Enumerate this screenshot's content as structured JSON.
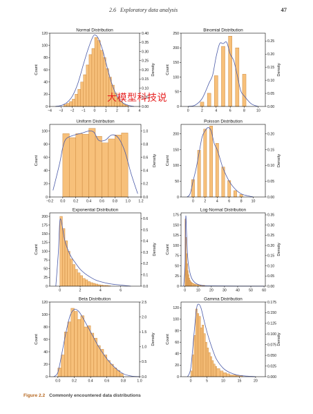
{
  "header": {
    "section": "2.6",
    "title": "Exploratory data analysis",
    "page_number": "47"
  },
  "caption": {
    "label": "Figure 2.2",
    "text": "Commonly encountered data distributions"
  },
  "watermark": {
    "text": "大模型科技说",
    "color": "#e62020"
  },
  "colors": {
    "bar_fill": "#f7c07a",
    "bar_stroke": "#c7843a",
    "density_line": "#4a5aa8"
  },
  "chart_data": [
    {
      "type": "bar",
      "title": "Normal Distribution",
      "ylabel": "Count",
      "y2label": "Density",
      "xlim": [
        -4,
        4
      ],
      "ylim": [
        0,
        120
      ],
      "y2lim": [
        0,
        0.4
      ],
      "xticks": [
        -4,
        -3,
        -2,
        -1,
        0,
        1,
        2,
        3,
        4
      ],
      "xtick_labels": [
        "−4",
        "−3",
        "−2",
        "−1",
        "0",
        "1",
        "2",
        "3",
        "4"
      ],
      "yticks": [
        0,
        20,
        40,
        60,
        80,
        100,
        120
      ],
      "y2ticks": [
        0,
        0.05,
        0.1,
        0.15,
        0.2,
        0.25,
        0.3,
        0.35,
        0.4
      ],
      "y2tick_labels": [
        "0.00",
        "0.05",
        "0.10",
        "0.15",
        "0.20",
        "0.25",
        "0.30",
        "0.35",
        "0.40"
      ],
      "bin_edges": [
        -2.75,
        -2.5,
        -2.25,
        -2.0,
        -1.75,
        -1.5,
        -1.25,
        -1.0,
        -0.75,
        -0.5,
        -0.25,
        0.0,
        0.25,
        0.5,
        0.75,
        1.0,
        1.25,
        1.5,
        1.75,
        2.0,
        2.25,
        2.5,
        2.75,
        3.0
      ],
      "counts": [
        3,
        5,
        8,
        12,
        20,
        28,
        40,
        52,
        68,
        85,
        95,
        113,
        108,
        92,
        80,
        62,
        48,
        35,
        22,
        14,
        8,
        4,
        2
      ],
      "density": [
        [
          -3.5,
          0.0
        ],
        [
          -3.0,
          0.005
        ],
        [
          -2.5,
          0.02
        ],
        [
          -2.0,
          0.055
        ],
        [
          -1.5,
          0.125
        ],
        [
          -1.0,
          0.23
        ],
        [
          -0.6,
          0.31
        ],
        [
          -0.2,
          0.375
        ],
        [
          0.0,
          0.39
        ],
        [
          0.3,
          0.375
        ],
        [
          0.7,
          0.31
        ],
        [
          1.0,
          0.24
        ],
        [
          1.5,
          0.13
        ],
        [
          2.0,
          0.056
        ],
        [
          2.5,
          0.02
        ],
        [
          3.0,
          0.006
        ],
        [
          3.5,
          0.0
        ]
      ]
    },
    {
      "type": "bar",
      "title": "Binomial Distribution",
      "ylabel": "Count",
      "y2label": "Density",
      "xlim": [
        -1,
        11
      ],
      "ylim": [
        0,
        250
      ],
      "y2lim": [
        0,
        0.28
      ],
      "xticks": [
        0,
        2,
        4,
        6,
        8,
        10
      ],
      "xtick_labels": [
        "0",
        "2",
        "4",
        "6",
        "8",
        "10"
      ],
      "yticks": [
        0,
        50,
        100,
        150,
        200,
        250
      ],
      "y2ticks": [
        0,
        0.05,
        0.1,
        0.15,
        0.2,
        0.25
      ],
      "y2tick_labels": [
        "0.00",
        "0.05",
        "0.10",
        "0.15",
        "0.20",
        "0.25"
      ],
      "bin_edges": [
        1.75,
        2.25,
        2.75,
        3.25,
        3.75,
        4.25,
        4.75,
        5.25,
        5.75,
        6.25,
        6.75,
        7.25,
        7.75,
        8.25,
        8.75
      ],
      "counts": [
        15,
        0,
        45,
        0,
        105,
        0,
        205,
        0,
        240,
        0,
        200,
        0,
        110,
        0,
        45
      ],
      "density": [
        [
          0,
          0.0
        ],
        [
          1,
          0.005
        ],
        [
          2,
          0.03
        ],
        [
          3,
          0.09
        ],
        [
          3.5,
          0.12
        ],
        [
          4,
          0.19
        ],
        [
          4.5,
          0.24
        ],
        [
          5,
          0.24
        ],
        [
          5.5,
          0.245
        ],
        [
          6,
          0.2
        ],
        [
          6.5,
          0.175
        ],
        [
          7,
          0.12
        ],
        [
          7.5,
          0.06
        ],
        [
          8,
          0.04
        ],
        [
          9,
          0.01
        ],
        [
          10,
          0.0
        ]
      ]
    },
    {
      "type": "bar",
      "title": "Uniform Distribution",
      "ylabel": "Count",
      "y2label": "Density",
      "xlim": [
        -0.2,
        1.2
      ],
      "ylim": [
        0,
        110
      ],
      "y2lim": [
        0,
        1.1
      ],
      "xticks": [
        -0.2,
        0.0,
        0.2,
        0.4,
        0.6,
        0.8,
        1.0,
        1.2
      ],
      "xtick_labels": [
        "−0.2",
        "0.0",
        "0.2",
        "0.4",
        "0.6",
        "0.8",
        "1.0",
        "1.2"
      ],
      "yticks": [
        0,
        20,
        40,
        60,
        80,
        100
      ],
      "y2ticks": [
        0.0,
        0.2,
        0.4,
        0.6,
        0.8,
        1.0
      ],
      "y2tick_labels": [
        "0.0",
        "0.2",
        "0.4",
        "0.6",
        "0.8",
        "1.0"
      ],
      "bin_edges": [
        0.0,
        0.1,
        0.2,
        0.3,
        0.4,
        0.5,
        0.6,
        0.7,
        0.8,
        0.9,
        1.0
      ],
      "counts": [
        96,
        90,
        96,
        95,
        104,
        92,
        82,
        88,
        94,
        97
      ],
      "density": [
        [
          -0.15,
          0.1
        ],
        [
          -0.05,
          0.5
        ],
        [
          0.0,
          0.75
        ],
        [
          0.05,
          0.88
        ],
        [
          0.15,
          0.93
        ],
        [
          0.3,
          0.97
        ],
        [
          0.4,
          1.0
        ],
        [
          0.48,
          0.98
        ],
        [
          0.55,
          0.86
        ],
        [
          0.65,
          0.86
        ],
        [
          0.75,
          0.94
        ],
        [
          0.85,
          0.9
        ],
        [
          0.95,
          0.7
        ],
        [
          1.05,
          0.35
        ],
        [
          1.15,
          0.05
        ]
      ]
    },
    {
      "type": "bar",
      "title": "Poisson Distribution",
      "ylabel": "Count",
      "y2label": "Density",
      "xlim": [
        -2,
        12
      ],
      "ylim": [
        0,
        230
      ],
      "y2lim": [
        0,
        0.23
      ],
      "xticks": [
        0,
        2,
        4,
        6,
        8,
        10
      ],
      "xtick_labels": [
        "0",
        "2",
        "4",
        "6",
        "8",
        "10"
      ],
      "yticks": [
        0,
        50,
        100,
        150,
        200
      ],
      "y2ticks": [
        0.0,
        0.05,
        0.1,
        0.15,
        0.2
      ],
      "y2tick_labels": [
        "0.00",
        "0.05",
        "0.10",
        "0.15",
        "0.20"
      ],
      "bin_edges": [
        -0.25,
        0.25,
        0.75,
        1.25,
        1.75,
        2.25,
        2.75,
        3.25,
        3.75,
        4.25,
        4.75,
        5.25,
        5.75,
        6.25,
        6.75,
        7.25,
        7.75,
        8.25
      ],
      "counts": [
        55,
        0,
        148,
        0,
        215,
        0,
        225,
        0,
        170,
        0,
        95,
        0,
        52,
        0,
        20,
        0,
        8
      ],
      "density": [
        [
          -1,
          0.0
        ],
        [
          -0.5,
          0.01
        ],
        [
          0,
          0.05
        ],
        [
          0.5,
          0.09
        ],
        [
          1,
          0.14
        ],
        [
          1.5,
          0.19
        ],
        [
          2,
          0.21
        ],
        [
          2.5,
          0.22
        ],
        [
          3,
          0.21
        ],
        [
          3.5,
          0.17
        ],
        [
          4,
          0.15
        ],
        [
          4.5,
          0.12
        ],
        [
          5,
          0.09
        ],
        [
          6,
          0.05
        ],
        [
          7,
          0.025
        ],
        [
          8,
          0.01
        ],
        [
          9,
          0.004
        ],
        [
          10,
          0.0
        ]
      ]
    },
    {
      "type": "bar",
      "title": "Exponential Distribution",
      "ylabel": "Count",
      "y2label": "Density",
      "xlim": [
        -1,
        8
      ],
      "ylim": [
        0,
        210
      ],
      "y2lim": [
        0,
        0.65
      ],
      "xticks": [
        0,
        2,
        4,
        6
      ],
      "xtick_labels": [
        "0",
        "2",
        "4",
        "6"
      ],
      "yticks": [
        0,
        25,
        50,
        75,
        100,
        125,
        150,
        175,
        200
      ],
      "y2ticks": [
        0.0,
        0.1,
        0.2,
        0.3,
        0.4,
        0.5,
        0.6
      ],
      "y2tick_labels": [
        "0.0",
        "0.1",
        "0.2",
        "0.3",
        "0.4",
        "0.5",
        "0.6"
      ],
      "bin_edges": [
        0.0,
        0.25,
        0.5,
        0.75,
        1.0,
        1.25,
        1.5,
        1.75,
        2.0,
        2.25,
        2.5,
        2.75,
        3.0,
        3.25,
        3.5,
        3.75,
        4.0,
        4.25,
        4.5,
        4.75,
        5.0
      ],
      "counts": [
        200,
        165,
        130,
        100,
        78,
        62,
        48,
        38,
        30,
        22,
        18,
        13,
        10,
        8,
        6,
        4,
        3,
        2,
        2,
        1
      ],
      "density": [
        [
          -0.4,
          0.0
        ],
        [
          -0.15,
          0.3
        ],
        [
          0.0,
          0.58
        ],
        [
          0.2,
          0.55
        ],
        [
          0.5,
          0.4
        ],
        [
          1.0,
          0.28
        ],
        [
          1.5,
          0.21
        ],
        [
          2.0,
          0.15
        ],
        [
          2.5,
          0.11
        ],
        [
          3.0,
          0.08
        ],
        [
          3.5,
          0.055
        ],
        [
          4.0,
          0.04
        ],
        [
          5.0,
          0.02
        ],
        [
          6.0,
          0.01
        ],
        [
          7.0,
          0.0
        ]
      ]
    },
    {
      "type": "bar",
      "title": "Log-Normal Distribution",
      "ylabel": "Count",
      "y2label": "Density",
      "xlim": [
        -3,
        61
      ],
      "ylim": [
        0,
        180
      ],
      "y2lim": [
        0,
        0.36
      ],
      "xticks": [
        0,
        10,
        20,
        30,
        40,
        50,
        60
      ],
      "xtick_labels": [
        "0",
        "10",
        "20",
        "30",
        "40",
        "50",
        "60"
      ],
      "yticks": [
        0,
        25,
        50,
        75,
        100,
        125,
        150,
        175
      ],
      "y2ticks": [
        0.0,
        0.05,
        0.1,
        0.15,
        0.2,
        0.25,
        0.3,
        0.35
      ],
      "y2tick_labels": [
        "0.00",
        "0.05",
        "0.10",
        "0.15",
        "0.20",
        "0.25",
        "0.30",
        "0.35"
      ],
      "bin_edges": [
        0,
        0.5,
        1.0,
        1.5,
        2.0,
        2.5,
        3.0,
        3.5,
        4.0,
        4.5,
        5.0,
        6.0,
        7.0,
        8.0,
        10.0,
        12.0,
        15.0
      ],
      "counts": [
        165,
        120,
        80,
        55,
        38,
        28,
        20,
        15,
        12,
        10,
        8,
        6,
        5,
        4,
        3,
        2
      ],
      "density": [
        [
          -1.0,
          0.0
        ],
        [
          0.0,
          0.1
        ],
        [
          0.6,
          0.34
        ],
        [
          1.2,
          0.26
        ],
        [
          2.0,
          0.15
        ],
        [
          3.0,
          0.09
        ],
        [
          5.0,
          0.04
        ],
        [
          8.0,
          0.015
        ],
        [
          12.0,
          0.005
        ],
        [
          20.0,
          0.001
        ],
        [
          60.0,
          0.0
        ]
      ]
    },
    {
      "type": "bar",
      "title": "Beta Distribution",
      "ylabel": "Count",
      "y2label": "Density",
      "xlim": [
        -0.1,
        1.0
      ],
      "ylim": [
        0,
        120
      ],
      "y2lim": [
        0,
        2.5
      ],
      "xticks": [
        0.0,
        0.2,
        0.4,
        0.6,
        0.8,
        1.0
      ],
      "xtick_labels": [
        "0.0",
        "0.2",
        "0.4",
        "0.6",
        "0.8",
        "1.0"
      ],
      "yticks": [
        0,
        20,
        40,
        60,
        80,
        100,
        120
      ],
      "y2ticks": [
        0.0,
        0.5,
        1.0,
        1.5,
        2.0,
        2.5
      ],
      "y2tick_labels": [
        "0.0",
        "0.5",
        "1.0",
        "1.5",
        "2.0",
        "2.5"
      ],
      "bin_edges": [
        0.0,
        0.04,
        0.08,
        0.12,
        0.16,
        0.2,
        0.24,
        0.28,
        0.32,
        0.36,
        0.4,
        0.44,
        0.48,
        0.52,
        0.56,
        0.6,
        0.64,
        0.68,
        0.72,
        0.76,
        0.8
      ],
      "counts": [
        14,
        35,
        72,
        88,
        110,
        105,
        92,
        98,
        80,
        82,
        70,
        62,
        50,
        44,
        35,
        26,
        20,
        14,
        10,
        5
      ],
      "density": [
        [
          -0.05,
          0.0
        ],
        [
          0.0,
          0.15
        ],
        [
          0.05,
          0.8
        ],
        [
          0.1,
          1.5
        ],
        [
          0.15,
          2.05
        ],
        [
          0.2,
          2.25
        ],
        [
          0.25,
          2.2
        ],
        [
          0.3,
          2.0
        ],
        [
          0.35,
          1.75
        ],
        [
          0.4,
          1.5
        ],
        [
          0.5,
          1.0
        ],
        [
          0.6,
          0.6
        ],
        [
          0.7,
          0.3
        ],
        [
          0.8,
          0.1
        ],
        [
          0.9,
          0.02
        ],
        [
          1.0,
          0.0
        ]
      ]
    },
    {
      "type": "bar",
      "title": "Gamma Distribution",
      "ylabel": "Count",
      "y2label": "Density",
      "xlim": [
        -3,
        23
      ],
      "ylim": [
        0,
        130
      ],
      "y2lim": [
        0,
        0.175
      ],
      "xticks": [
        0,
        5,
        10,
        15,
        20
      ],
      "xtick_labels": [
        "0",
        "5",
        "10",
        "15",
        "20"
      ],
      "yticks": [
        0,
        20,
        40,
        60,
        80,
        100,
        120
      ],
      "y2ticks": [
        0.0,
        0.025,
        0.05,
        0.075,
        0.1,
        0.125,
        0.15,
        0.175
      ],
      "y2tick_labels": [
        "0.000",
        "0.025",
        "0.050",
        "0.075",
        "0.100",
        "0.125",
        "0.150",
        "0.175"
      ],
      "bin_edges": [
        0.0,
        0.5,
        1.0,
        1.5,
        2.0,
        2.5,
        3.0,
        3.5,
        4.0,
        4.5,
        5.0,
        5.5,
        6.0,
        6.5,
        7.0,
        7.5,
        8.0,
        9.0,
        10.0,
        11.0,
        12.0,
        14.0,
        16.0
      ],
      "counts": [
        10,
        38,
        72,
        118,
        110,
        105,
        85,
        90,
        75,
        60,
        50,
        42,
        35,
        28,
        22,
        18,
        14,
        10,
        7,
        5,
        3,
        2
      ],
      "density": [
        [
          -1.0,
          0.0
        ],
        [
          0.0,
          0.02
        ],
        [
          1.0,
          0.1
        ],
        [
          1.8,
          0.16
        ],
        [
          2.5,
          0.17
        ],
        [
          3.2,
          0.16
        ],
        [
          4.0,
          0.135
        ],
        [
          5.0,
          0.105
        ],
        [
          6.0,
          0.08
        ],
        [
          7.0,
          0.058
        ],
        [
          8.0,
          0.04
        ],
        [
          10.0,
          0.02
        ],
        [
          12.0,
          0.01
        ],
        [
          15.0,
          0.003
        ],
        [
          20.0,
          0.0
        ]
      ]
    }
  ]
}
